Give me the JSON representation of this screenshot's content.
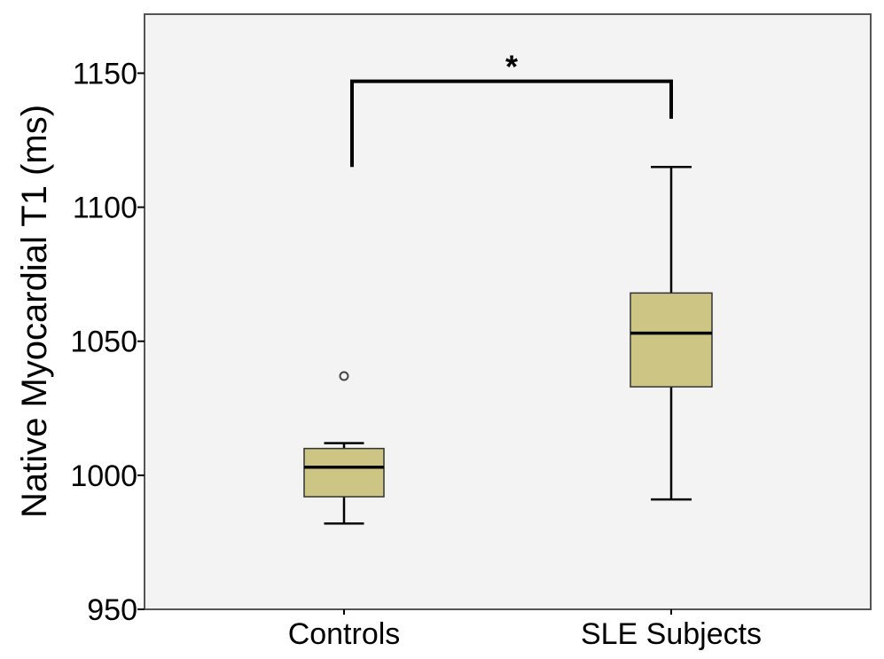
{
  "chart_data": {
    "type": "boxplot",
    "title": "",
    "xlabel": "",
    "ylabel": "Native Myocardial T1 (ms)",
    "ylim": [
      950,
      1172
    ],
    "yticks": [
      950,
      1000,
      1050,
      1100,
      1150
    ],
    "ytick_labels": [
      "950",
      "1000",
      "1050",
      "1100",
      "1150"
    ],
    "grid": false,
    "categories": [
      "Controls",
      "SLE Subjects"
    ],
    "boxes": [
      {
        "name": "Controls",
        "whisker_low": 982,
        "q1": 992,
        "median": 1003,
        "q3": 1010,
        "whisker_high": 1012,
        "outliers": [
          1037
        ]
      },
      {
        "name": "SLE Subjects",
        "whisker_low": 991,
        "q1": 1033,
        "median": 1053,
        "q3": 1068,
        "whisker_high": 1115,
        "outliers": []
      }
    ],
    "significance": {
      "label": "*",
      "between": [
        "Controls",
        "SLE Subjects"
      ],
      "bracket_level": 1147,
      "left_end": 1115,
      "right_end": 1133
    },
    "colors": {
      "box_fill": "#ccc584",
      "panel_background": "#f3f3f3",
      "outline": "#000000"
    }
  }
}
